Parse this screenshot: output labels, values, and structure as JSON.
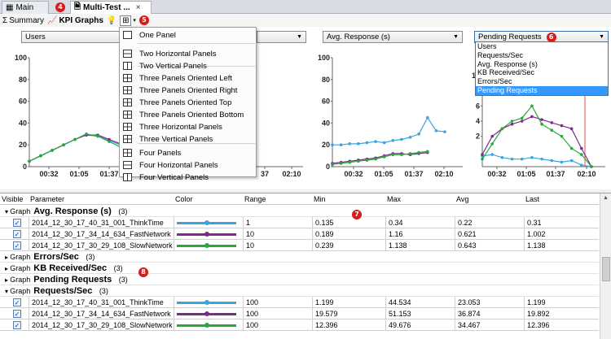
{
  "tabs": [
    {
      "label": "Main"
    },
    {
      "label": "Multi-Test ...",
      "close": "×"
    }
  ],
  "badges": [
    "4",
    "5",
    "6",
    "7",
    "8"
  ],
  "toolbar": {
    "summary": "Summary",
    "kpi_graphs": "KPI Graphs"
  },
  "layout_menu": {
    "items": [
      "One Panel",
      "Two Horizontal Panels",
      "Two Vertical Panels",
      "Three Panels Oriented Left",
      "Three Panels Oriented Right",
      "Three Panels Oriented Top",
      "Three Panels Oriented Bottom",
      "Three Horizontal Panels",
      "Three Vertical Panels",
      "Four Panels",
      "Four Horizontal Panels",
      "Four Vertical Panels"
    ]
  },
  "panels": [
    {
      "selected": "Users"
    },
    {
      "selected": ""
    },
    {
      "selected": "Avg. Response (s)"
    },
    {
      "selected": "Pending Requests"
    }
  ],
  "dropdown_options": [
    "Users",
    "Requests/Sec",
    "Avg. Response (s)",
    "KB Received/Sec",
    "Errors/Sec",
    "Pending Requests"
  ],
  "dropdown_selected_index": 5,
  "colors": {
    "thinktime": "#3ba3de",
    "fastnetwork": "#7b2b8c",
    "slownetwork": "#28a83a",
    "marker": "#e05050",
    "badge": "#d81b1b"
  },
  "chart_data": [
    {
      "type": "line",
      "title": "Users",
      "ylim": [
        0,
        100
      ],
      "y_ticks": [
        "100",
        "80",
        "60",
        "40",
        "20",
        "0"
      ],
      "x_ticks": [
        "00:32",
        "01:05",
        "01:37"
      ],
      "x": [
        0,
        4,
        8,
        12,
        16,
        20,
        24,
        28,
        32
      ],
      "series": [
        {
          "name": "2014_12_30_17_40_31_001_ThinkTime",
          "color": "#3ba3de",
          "values": [
            5,
            10,
            15,
            20,
            25,
            29,
            28,
            24,
            20
          ]
        },
        {
          "name": "2014_12_30_17_34_14_634_FastNetwork",
          "color": "#7b2b8c",
          "values": [
            5,
            10,
            15,
            20,
            25,
            29,
            29,
            25,
            21
          ]
        },
        {
          "name": "2014_12_30_17_30_29_108_SlowNetwork",
          "color": "#28a83a",
          "values": [
            5,
            10,
            15,
            20,
            25,
            30,
            28,
            23,
            18
          ]
        }
      ]
    },
    {
      "type": "line",
      "title": "",
      "x_ticks": [
        "37",
        "02:10"
      ],
      "series": []
    },
    {
      "type": "line",
      "title": "Avg. Response (s)",
      "ylim": [
        0,
        100
      ],
      "y_ticks": [
        "100",
        "80",
        "60",
        "40",
        "20",
        "0"
      ],
      "x_ticks": [
        "00:32",
        "01:05",
        "01:37",
        "02:10"
      ],
      "x": [
        0,
        1,
        2,
        3,
        4,
        5,
        6,
        7,
        8,
        9,
        10,
        11,
        12,
        13
      ],
      "series": [
        {
          "name": "2014_12_30_17_40_31_001_ThinkTime",
          "color": "#3ba3de",
          "values": [
            20,
            20,
            21,
            21,
            22,
            23,
            22,
            24,
            25,
            27,
            30,
            45,
            33,
            32
          ]
        },
        {
          "name": "2014_12_30_17_34_14_634_FastNetwork",
          "color": "#7b2b8c",
          "values": [
            3,
            4,
            5,
            6,
            7,
            8,
            10,
            12,
            12,
            11,
            12,
            13,
            null,
            null
          ]
        },
        {
          "name": "2014_12_30_17_30_29_108_SlowNetwork",
          "color": "#28a83a",
          "values": [
            2,
            3,
            4,
            5,
            6,
            7,
            9,
            11,
            11,
            12,
            13,
            14,
            null,
            null
          ]
        }
      ]
    },
    {
      "type": "line",
      "title": "Pending Requests",
      "y_ticks": [
        "10",
        "8",
        "6",
        "4",
        "2"
      ],
      "x_ticks": [
        "00:32",
        "01:05",
        "01:37",
        "02:10"
      ],
      "x": [
        0,
        1,
        2,
        3,
        4,
        5,
        6,
        7,
        8,
        9,
        10,
        11
      ],
      "series": [
        {
          "name": "2014_12_30_17_40_31_001_ThinkTime",
          "color": "#3ba3de",
          "values": [
            7,
            8,
            6,
            5,
            5,
            6,
            5,
            4,
            3,
            4,
            1,
            0
          ]
        },
        {
          "name": "2014_12_30_17_34_14_634_FastNetwork",
          "color": "#7b2b8c",
          "values": [
            8,
            20,
            25,
            28,
            30,
            33,
            31,
            29,
            27,
            25,
            12,
            0
          ]
        },
        {
          "name": "2014_12_30_17_30_29_108_SlowNetwork",
          "color": "#28a83a",
          "values": [
            5,
            15,
            25,
            30,
            32,
            40,
            28,
            24,
            20,
            12,
            8,
            0
          ]
        }
      ]
    }
  ],
  "table": {
    "headers": [
      "Visible",
      "Parameter",
      "Color",
      "Range",
      "Min",
      "Max",
      "Avg",
      "Last"
    ],
    "graph_word": "Graph",
    "groups": [
      {
        "name": "Avg. Response (s)",
        "count": "(3)",
        "expanded": true,
        "rows": [
          {
            "param": "2014_12_30_17_40_31_001_ThinkTime",
            "color": "#3ba3de",
            "range": "1",
            "min": "0.135",
            "max": "0.34",
            "avg": "0.22",
            "last": "0.31"
          },
          {
            "param": "2014_12_30_17_34_14_634_FastNetwork",
            "color": "#7b2b8c",
            "range": "10",
            "min": "0.189",
            "max": "1.16",
            "avg": "0.621",
            "last": "1.002"
          },
          {
            "param": "2014_12_30_17_30_29_108_SlowNetwork",
            "color": "#28a83a",
            "range": "10",
            "min": "0.239",
            "max": "1.138",
            "avg": "0.643",
            "last": "1.138"
          }
        ]
      },
      {
        "name": "Errors/Sec",
        "count": "(3)",
        "expanded": false,
        "rows": []
      },
      {
        "name": "KB Received/Sec",
        "count": "(3)",
        "expanded": false,
        "rows": []
      },
      {
        "name": "Pending Requests",
        "count": "(3)",
        "expanded": false,
        "rows": []
      },
      {
        "name": "Requests/Sec",
        "count": "(3)",
        "expanded": true,
        "rows": [
          {
            "param": "2014_12_30_17_40_31_001_ThinkTime",
            "color": "#3ba3de",
            "range": "100",
            "min": "1.199",
            "max": "44.534",
            "avg": "23.053",
            "last": "1.199"
          },
          {
            "param": "2014_12_30_17_34_14_634_FastNetwork",
            "color": "#7b2b8c",
            "range": "100",
            "min": "19.579",
            "max": "51.153",
            "avg": "36.874",
            "last": "19.892"
          },
          {
            "param": "2014_12_30_17_30_29_108_SlowNetwork",
            "color": "#28a83a",
            "range": "100",
            "min": "12.396",
            "max": "49.676",
            "avg": "34.467",
            "last": "12.396"
          }
        ]
      }
    ]
  }
}
